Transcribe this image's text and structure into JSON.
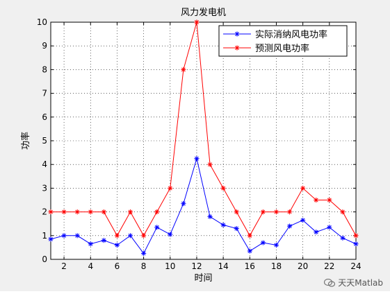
{
  "chart_data": {
    "type": "line",
    "title": "风力发电机",
    "xlabel": "时间",
    "ylabel": "功率",
    "xlim": [
      1,
      24
    ],
    "ylim": [
      0,
      10
    ],
    "x": [
      1,
      2,
      3,
      4,
      5,
      6,
      7,
      8,
      9,
      10,
      11,
      12,
      13,
      14,
      15,
      16,
      17,
      18,
      19,
      20,
      21,
      22,
      23,
      24
    ],
    "xticks": [
      2,
      4,
      6,
      8,
      10,
      12,
      14,
      16,
      18,
      20,
      22,
      24
    ],
    "yticks": [
      0,
      1,
      2,
      3,
      4,
      5,
      6,
      7,
      8,
      9,
      10
    ],
    "grid": true,
    "legend_position": "top-right",
    "series": [
      {
        "name": "实际消纳风电功率",
        "color": "#0000ff",
        "marker": "*",
        "values": [
          0.85,
          1.0,
          1.0,
          0.65,
          0.8,
          0.6,
          1.0,
          0.25,
          1.35,
          1.05,
          2.35,
          4.25,
          1.8,
          1.45,
          1.3,
          0.35,
          0.7,
          0.6,
          1.4,
          1.65,
          1.15,
          1.35,
          0.9,
          0.65
        ]
      },
      {
        "name": "预测风电功率",
        "color": "#ff0000",
        "marker": "*",
        "values": [
          2,
          2,
          2,
          2,
          2,
          1,
          2,
          1,
          2,
          3,
          8,
          10,
          4,
          3,
          2,
          1,
          2,
          2,
          2,
          3,
          2.5,
          2.5,
          2,
          1
        ]
      }
    ]
  },
  "watermark": {
    "text": "天天Matlab",
    "icon": "wechat-icon"
  }
}
